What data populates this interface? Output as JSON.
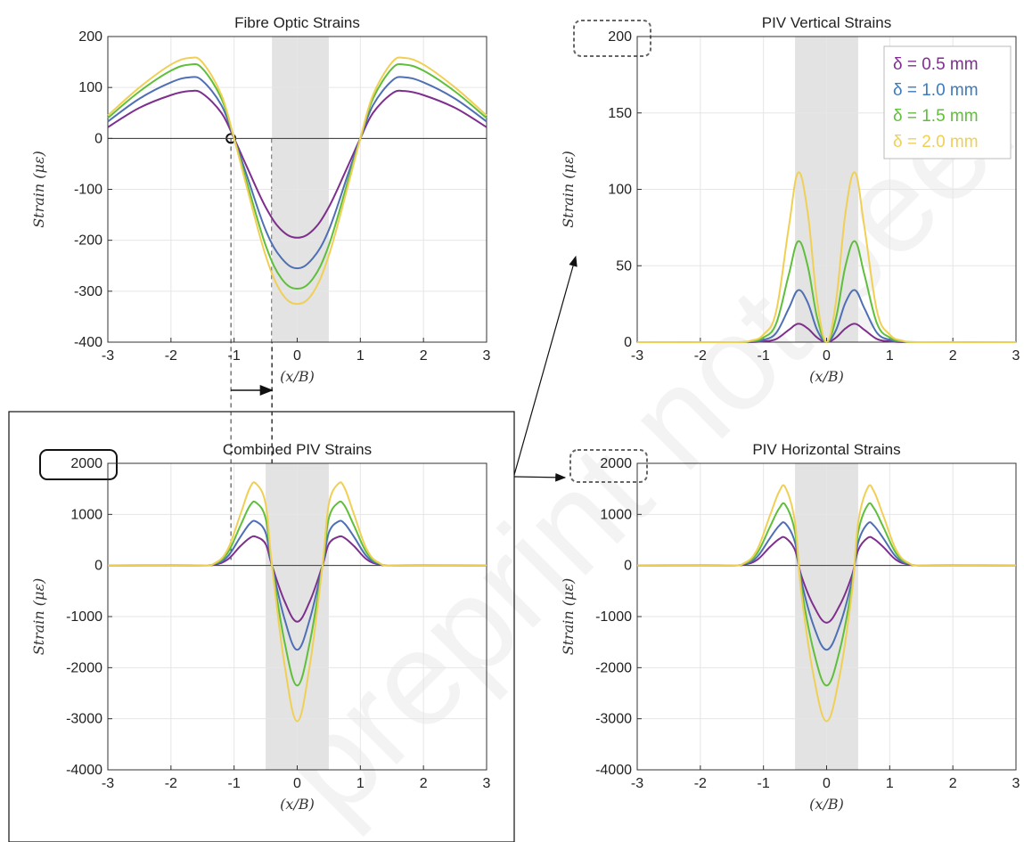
{
  "colors": {
    "d05": "#7e2f8e",
    "d10": "#4f6fb5",
    "d15": "#5fbf3a",
    "d20": "#f0cf55",
    "shade": "#e3e3e3",
    "grid": "#e6e6e6"
  },
  "legend": {
    "items": [
      {
        "label": "δ = 0.5 mm",
        "color": "#7e2f8e"
      },
      {
        "label": "δ = 1.0 mm",
        "color": "#3a7bbf"
      },
      {
        "label": "δ = 1.5 mm",
        "color": "#5fbf3a"
      },
      {
        "label": "δ = 2.0 mm",
        "color": "#f0cf55"
      }
    ]
  },
  "watermark": "preprint not peer",
  "chart_data": [
    {
      "id": "fibre",
      "type": "line",
      "title": "Fibre Optic Strains",
      "xlabel": "(x/B)",
      "ylabel": "Strain (με)",
      "xlim": [
        -3,
        3
      ],
      "ylim": [
        -400,
        200
      ],
      "xticks": [
        "-3",
        "-2",
        "-1",
        "0",
        "1",
        "2",
        "3"
      ],
      "yticks": [
        "200",
        "100",
        "0",
        "-100",
        "-200",
        "-300",
        "-400"
      ],
      "grid": true,
      "shaded_region": [
        -0.4,
        0.5
      ],
      "x": [
        -3,
        -2.5,
        -2,
        -1.7,
        -1.5,
        -1.2,
        -1,
        -0.8,
        -0.5,
        -0.25,
        0,
        0.25,
        0.5,
        0.8,
        1,
        1.2,
        1.5,
        1.7,
        2,
        2.5,
        3
      ],
      "series": [
        {
          "name": "δ = 0.5 mm",
          "values": [
            22,
            60,
            85,
            93,
            88,
            50,
            0,
            -55,
            -135,
            -180,
            -195,
            -180,
            -135,
            -55,
            0,
            50,
            88,
            93,
            85,
            60,
            22
          ]
        },
        {
          "name": "δ = 1.0 mm",
          "values": [
            33,
            78,
            110,
            120,
            113,
            65,
            0,
            -72,
            -180,
            -235,
            -255,
            -235,
            -180,
            -72,
            0,
            65,
            113,
            120,
            110,
            78,
            33
          ]
        },
        {
          "name": "δ = 1.5 mm",
          "values": [
            40,
            92,
            133,
            145,
            137,
            78,
            0,
            -85,
            -210,
            -275,
            -295,
            -275,
            -210,
            -85,
            0,
            78,
            137,
            145,
            133,
            92,
            40
          ]
        },
        {
          "name": "δ = 2.0 mm",
          "values": [
            45,
            100,
            145,
            158,
            149,
            85,
            0,
            -95,
            -230,
            -303,
            -325,
            -303,
            -230,
            -95,
            0,
            85,
            149,
            158,
            145,
            100,
            45
          ]
        }
      ]
    },
    {
      "id": "vertical",
      "type": "line",
      "title": "PIV Vertical Strains",
      "xlabel": "(x/B)",
      "ylabel": "Strain (με)",
      "xlim": [
        -3,
        3
      ],
      "ylim": [
        0,
        200
      ],
      "xticks": [
        "-3",
        "-2",
        "-1",
        "0",
        "1",
        "2",
        "3"
      ],
      "yticks": [
        "200",
        "150",
        "100",
        "50",
        "0"
      ],
      "grid": true,
      "shaded_region": [
        -0.5,
        0.5
      ],
      "x": [
        -3,
        -1.5,
        -1.2,
        -1,
        -0.8,
        -0.6,
        -0.45,
        -0.3,
        -0.15,
        0,
        0.15,
        0.3,
        0.45,
        0.6,
        0.8,
        1,
        1.2,
        1.5,
        3
      ],
      "series": [
        {
          "name": "δ = 0.5 mm",
          "values": [
            0,
            0,
            0,
            0.5,
            2,
            8,
            12,
            9,
            3,
            0,
            3,
            9,
            12,
            8,
            2,
            0.5,
            0,
            0,
            0
          ]
        },
        {
          "name": "δ = 1.0 mm",
          "values": [
            0,
            0,
            0.3,
            1.5,
            6,
            22,
            34,
            26,
            8,
            0,
            8,
            26,
            34,
            22,
            6,
            1.5,
            0.3,
            0,
            0
          ]
        },
        {
          "name": "δ = 1.5 mm",
          "values": [
            0,
            0,
            0.5,
            3,
            12,
            44,
            66,
            50,
            16,
            0,
            16,
            50,
            66,
            44,
            12,
            3,
            0.5,
            0,
            0
          ]
        },
        {
          "name": "δ = 2.0 mm",
          "values": [
            0,
            0,
            1,
            5,
            20,
            75,
            111,
            85,
            27,
            0,
            27,
            85,
            111,
            75,
            20,
            5,
            1,
            0,
            0
          ]
        }
      ]
    },
    {
      "id": "combined",
      "type": "line",
      "title": "Combined PIV Strains",
      "xlabel": "(x/B)",
      "ylabel": "Strain (με)",
      "xlim": [
        -3,
        3
      ],
      "ylim": [
        -4000,
        2000
      ],
      "xticks": [
        "-3",
        "-2",
        "-1",
        "0",
        "1",
        "2",
        "3"
      ],
      "yticks": [
        "2000",
        "1000",
        "0",
        "-1000",
        "-2000",
        "-3000",
        "-4000"
      ],
      "grid": true,
      "shaded_region": [
        -0.5,
        0.5
      ],
      "x": [
        -3,
        -1.6,
        -1.3,
        -1.1,
        -0.9,
        -0.75,
        -0.65,
        -0.5,
        -0.4,
        -0.2,
        0,
        0.2,
        0.4,
        0.5,
        0.65,
        0.75,
        0.9,
        1.1,
        1.3,
        1.6,
        3
      ],
      "series": [
        {
          "name": "δ = 0.5 mm",
          "values": [
            0,
            0,
            20,
            120,
            380,
            540,
            560,
            420,
            0,
            -700,
            -1100,
            -700,
            0,
            420,
            560,
            540,
            380,
            120,
            20,
            0,
            0
          ]
        },
        {
          "name": "δ = 1.0 mm",
          "values": [
            0,
            0,
            30,
            180,
            560,
            820,
            860,
            640,
            0,
            -1050,
            -1650,
            -1050,
            0,
            640,
            860,
            820,
            560,
            180,
            30,
            0,
            0
          ]
        },
        {
          "name": "δ = 1.5 mm",
          "values": [
            0,
            0,
            40,
            250,
            780,
            1170,
            1230,
            920,
            0,
            -1500,
            -2350,
            -1500,
            0,
            920,
            1230,
            1170,
            780,
            250,
            40,
            0,
            0
          ]
        },
        {
          "name": "δ = 2.0 mm",
          "values": [
            0,
            0,
            50,
            320,
            1000,
            1520,
            1600,
            1200,
            0,
            -1950,
            -3050,
            -1950,
            0,
            1200,
            1600,
            1520,
            1000,
            320,
            50,
            0,
            0
          ]
        }
      ]
    },
    {
      "id": "horizontal",
      "type": "line",
      "title": "PIV Horizontal Strains",
      "xlabel": "(x/B)",
      "ylabel": "Strain (με)",
      "xlim": [
        -3,
        3
      ],
      "ylim": [
        -4000,
        2000
      ],
      "xticks": [
        "-3",
        "-2",
        "-1",
        "0",
        "1",
        "2",
        "3"
      ],
      "yticks": [
        "2000",
        "1000",
        "0",
        "-1000",
        "-2000",
        "-3000",
        "-4000"
      ],
      "grid": true,
      "shaded_region": [
        -0.5,
        0.5
      ],
      "x": [
        -3,
        -1.6,
        -1.3,
        -1.1,
        -0.9,
        -0.75,
        -0.65,
        -0.5,
        -0.4,
        -0.2,
        0,
        0.2,
        0.4,
        0.5,
        0.65,
        0.75,
        0.9,
        1.1,
        1.3,
        1.6,
        3
      ],
      "series": [
        {
          "name": "δ = 0.5 mm",
          "values": [
            0,
            0,
            20,
            110,
            360,
            520,
            540,
            300,
            -200,
            -800,
            -1120,
            -800,
            -200,
            300,
            540,
            520,
            360,
            110,
            20,
            0,
            0
          ]
        },
        {
          "name": "δ = 1.0 mm",
          "values": [
            0,
            0,
            30,
            170,
            530,
            780,
            820,
            450,
            -300,
            -1200,
            -1650,
            -1200,
            -300,
            450,
            820,
            780,
            530,
            170,
            30,
            0,
            0
          ]
        },
        {
          "name": "δ = 1.5 mm",
          "values": [
            0,
            0,
            40,
            240,
            750,
            1120,
            1180,
            650,
            -420,
            -1700,
            -2350,
            -1700,
            -420,
            650,
            1180,
            1120,
            750,
            240,
            40,
            0,
            0
          ]
        },
        {
          "name": "δ = 2.0 mm",
          "values": [
            0,
            0,
            50,
            310,
            970,
            1450,
            1520,
            840,
            -540,
            -2200,
            -3050,
            -2200,
            -540,
            840,
            1520,
            1450,
            970,
            310,
            50,
            0,
            0
          ]
        }
      ]
    }
  ]
}
